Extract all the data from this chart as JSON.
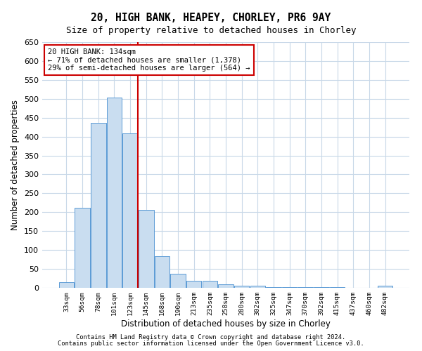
{
  "title1": "20, HIGH BANK, HEAPEY, CHORLEY, PR6 9AY",
  "title2": "Size of property relative to detached houses in Chorley",
  "xlabel": "Distribution of detached houses by size in Chorley",
  "ylabel": "Number of detached properties",
  "categories": [
    "33sqm",
    "56sqm",
    "78sqm",
    "101sqm",
    "123sqm",
    "145sqm",
    "168sqm",
    "190sqm",
    "213sqm",
    "235sqm",
    "258sqm",
    "280sqm",
    "302sqm",
    "325sqm",
    "347sqm",
    "370sqm",
    "392sqm",
    "415sqm",
    "437sqm",
    "460sqm",
    "482sqm"
  ],
  "values": [
    15,
    212,
    437,
    503,
    408,
    207,
    84,
    38,
    18,
    18,
    10,
    6,
    5,
    2,
    2,
    2,
    2,
    1,
    0,
    0,
    5
  ],
  "bar_color": "#c9ddf0",
  "bar_edge_color": "#5b9bd5",
  "vline_color": "#cc0000",
  "vline_x": 4.5,
  "ylim_max": 650,
  "yticks": [
    0,
    50,
    100,
    150,
    200,
    250,
    300,
    350,
    400,
    450,
    500,
    550,
    600,
    650
  ],
  "annotation_line1": "20 HIGH BANK: 134sqm",
  "annotation_line2": "← 71% of detached houses are smaller (1,378)",
  "annotation_line3": "29% of semi-detached houses are larger (564) →",
  "ann_box_facecolor": "#ffffff",
  "ann_box_edgecolor": "#cc0000",
  "grid_color": "#c8d8e8",
  "bg_color": "#ffffff",
  "footer1": "Contains HM Land Registry data © Crown copyright and database right 2024.",
  "footer2": "Contains public sector information licensed under the Open Government Licence v3.0.",
  "title1_fontsize": 10.5,
  "title2_fontsize": 9,
  "ylabel_fontsize": 8.5,
  "xlabel_fontsize": 8.5,
  "tick_fontsize": 6.8,
  "ytick_fontsize": 8,
  "ann_fontsize": 7.5,
  "footer_fontsize": 6.2
}
